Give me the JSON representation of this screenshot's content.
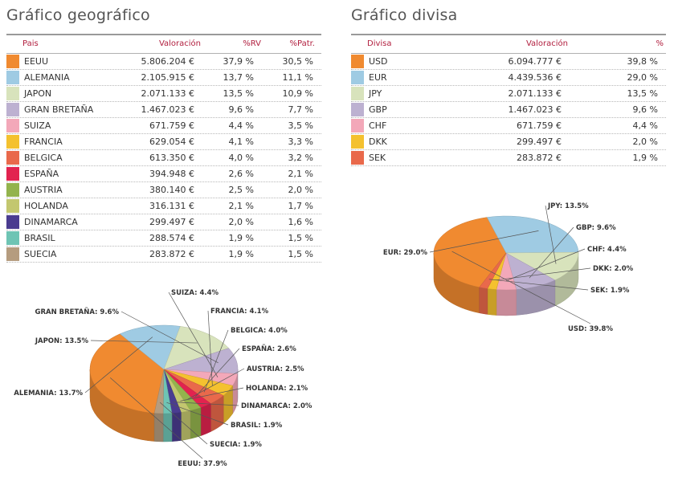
{
  "geo": {
    "title": "Gráfico geográfico",
    "headers": {
      "name": "Pais",
      "val": "Valoración",
      "rv": "%RV",
      "patr": "%Patr."
    },
    "rows": [
      {
        "name": "EEUU",
        "val": "5.806.204 €",
        "rv": "37,9 %",
        "patr": "30,5 %",
        "color": "#f08a30"
      },
      {
        "name": "ALEMANIA",
        "val": "2.105.915 €",
        "rv": "13,7 %",
        "patr": "11,1 %",
        "color": "#9fcbe3"
      },
      {
        "name": "JAPON",
        "val": "2.071.133 €",
        "rv": "13,5 %",
        "patr": "10,9 %",
        "color": "#d8e3bc"
      },
      {
        "name": "GRAN BRETAÑA",
        "val": "1.467.023 €",
        "rv": "9,6 %",
        "patr": "7,7 %",
        "color": "#bdb1d1"
      },
      {
        "name": "SUIZA",
        "val": "671.759 €",
        "rv": "4,4 %",
        "patr": "3,5 %",
        "color": "#f3a8b9"
      },
      {
        "name": "FRANCIA",
        "val": "629.054 €",
        "rv": "4,1 %",
        "patr": "3,3 %",
        "color": "#f4c12f"
      },
      {
        "name": "BELGICA",
        "val": "613.350 €",
        "rv": "4,0 %",
        "patr": "3,2 %",
        "color": "#e9694b"
      },
      {
        "name": "ESPAÑA",
        "val": "394.948 €",
        "rv": "2,6 %",
        "patr": "2,1 %",
        "color": "#e2234f"
      },
      {
        "name": "AUSTRIA",
        "val": "380.140 €",
        "rv": "2,5 %",
        "patr": "2,0 %",
        "color": "#93b34d"
      },
      {
        "name": "HOLANDA",
        "val": "316.131 €",
        "rv": "2,1 %",
        "patr": "1,7 %",
        "color": "#c3c76f"
      },
      {
        "name": "DINAMARCA",
        "val": "299.497 €",
        "rv": "2,0 %",
        "patr": "1,6 %",
        "color": "#4a3c90"
      },
      {
        "name": "BRASIL",
        "val": "288.574 €",
        "rv": "1,9 %",
        "patr": "1,5 %",
        "color": "#6ec4b4"
      },
      {
        "name": "SUECIA",
        "val": "283.872 €",
        "rv": "1,9 %",
        "patr": "1,5 %",
        "color": "#b59c7f"
      }
    ]
  },
  "div": {
    "title": "Gráfico divisa",
    "headers": {
      "name": "Divisa",
      "val": "Valoración",
      "pct": "%"
    },
    "rows": [
      {
        "name": "USD",
        "val": "6.094.777 €",
        "pct": "39,8 %",
        "color": "#f08a30"
      },
      {
        "name": "EUR",
        "val": "4.439.536 €",
        "pct": "29,0 %",
        "color": "#9fcbe3"
      },
      {
        "name": "JPY",
        "val": "2.071.133 €",
        "pct": "13,5 %",
        "color": "#d8e3bc"
      },
      {
        "name": "GBP",
        "val": "1.467.023 €",
        "pct": "9,6 %",
        "color": "#bdb1d1"
      },
      {
        "name": "CHF",
        "val": "671.759 €",
        "pct": "4,4 %",
        "color": "#f3a8b9"
      },
      {
        "name": "DKK",
        "val": "299.497 €",
        "pct": "2,0 %",
        "color": "#f4c12f"
      },
      {
        "name": "SEK",
        "val": "283.872 €",
        "pct": "1,9 %",
        "color": "#e9694b"
      }
    ]
  },
  "chart_data": [
    {
      "type": "pie",
      "title": "",
      "categories": [
        "EEUU",
        "ALEMANIA",
        "JAPON",
        "GRAN BRETAÑA",
        "SUIZA",
        "FRANCIA",
        "BELGICA",
        "ESPAÑA",
        "AUSTRIA",
        "HOLANDA",
        "DINAMARCA",
        "BRASIL",
        "SUECIA"
      ],
      "values": [
        37.9,
        13.7,
        13.5,
        9.6,
        4.4,
        4.1,
        4.0,
        2.6,
        2.5,
        2.1,
        2.0,
        1.9,
        1.9
      ],
      "labels": [
        "EEUU: 37.9%",
        "ALEMANIA: 13.7%",
        "JAPON: 13.5%",
        "GRAN BRETAÑA: 9.6%",
        "SUIZA: 4.4%",
        "FRANCIA: 4.1%",
        "BELGICA: 4.0%",
        "ESPAÑA: 2.6%",
        "AUSTRIA: 2.5%",
        "HOLANDA: 2.1%",
        "DINAMARCA: 2.0%",
        "BRASIL: 1.9%",
        "SUECIA: 1.9%"
      ],
      "colors": [
        "#f08a30",
        "#9fcbe3",
        "#d8e3bc",
        "#bdb1d1",
        "#f3a8b9",
        "#f4c12f",
        "#e9694b",
        "#e2234f",
        "#93b34d",
        "#c3c76f",
        "#4a3c90",
        "#6ec4b4",
        "#b59c7f"
      ]
    },
    {
      "type": "pie",
      "title": "",
      "categories": [
        "USD",
        "EUR",
        "JPY",
        "GBP",
        "CHF",
        "DKK",
        "SEK"
      ],
      "values": [
        39.8,
        29.0,
        13.5,
        9.6,
        4.4,
        2.0,
        1.9
      ],
      "labels": [
        "USD: 39.8%",
        "EUR: 29.0%",
        "JPY: 13.5%",
        "GBP: 9.6%",
        "CHF: 4.4%",
        "DKK: 2.0%",
        "SEK: 1.9%"
      ],
      "colors": [
        "#f08a30",
        "#9fcbe3",
        "#d8e3bc",
        "#bdb1d1",
        "#f3a8b9",
        "#f4c12f",
        "#e9694b"
      ]
    }
  ]
}
